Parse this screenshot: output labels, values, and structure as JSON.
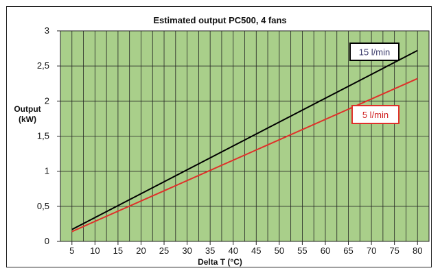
{
  "chart_data": {
    "type": "line",
    "title": "Estimated output PC500, 4 fans",
    "ylabel_line1": "Output",
    "ylabel_line2": "(kW)",
    "xlabel": "Delta T (°C)",
    "x_ticks": [
      5,
      10,
      15,
      20,
      25,
      30,
      35,
      40,
      45,
      50,
      55,
      60,
      65,
      70,
      75,
      80
    ],
    "y_ticks": [
      "0",
      "0,5",
      "1",
      "1,5",
      "2",
      "2,5",
      "3"
    ],
    "y_tick_values": [
      0,
      0.5,
      1,
      1.5,
      2,
      2.5,
      3
    ],
    "xlim": [
      2.5,
      82.5
    ],
    "ylim": [
      0,
      3
    ],
    "grid": true,
    "plot_background": "#a9cf8a",
    "series": [
      {
        "name": "15 l/min",
        "color": "#000000",
        "label_color": "#3a3a6a",
        "x": [
          5,
          80
        ],
        "y": [
          0.17,
          2.72
        ]
      },
      {
        "name": "5 l/min",
        "color": "#e0302a",
        "label_color": "#d02020",
        "x": [
          5,
          80
        ],
        "y": [
          0.14,
          2.32
        ]
      }
    ]
  }
}
